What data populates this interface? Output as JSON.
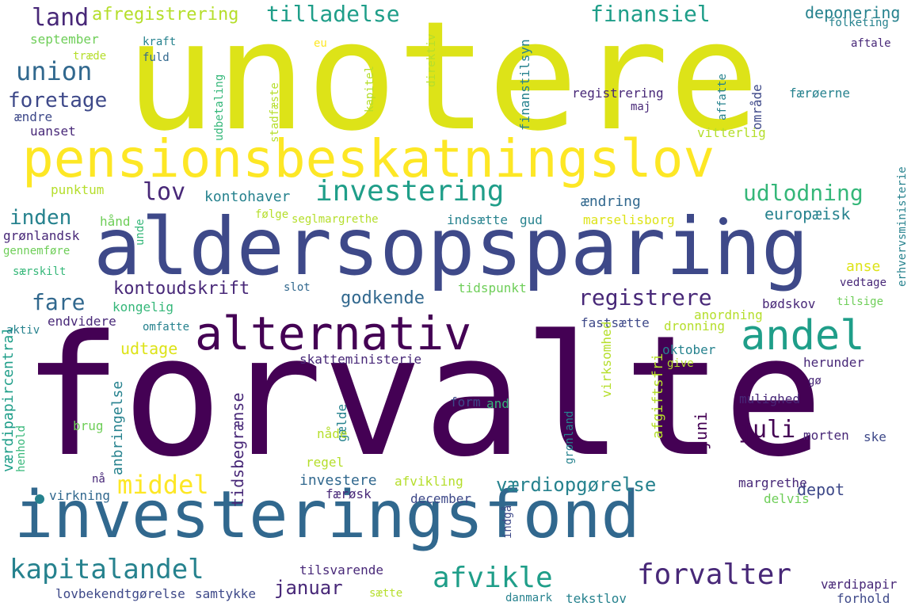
{
  "palette": {
    "c0": "#440154",
    "c1": "#482878",
    "c2": "#3e4989",
    "c3": "#31688e",
    "c4": "#26828e",
    "c5": "#1f9e89",
    "c6": "#35b779",
    "c7": "#6ece58",
    "c8": "#b5de2b",
    "c9": "#dde318",
    "c10": "#fde725"
  },
  "words": [
    {
      "text": "unotere",
      "color": "c9"
    },
    {
      "text": "forvalte",
      "color": "c0"
    },
    {
      "text": "aldersopsparing",
      "color": "c2"
    },
    {
      "text": "investeringsfond",
      "color": "c3"
    },
    {
      "text": "pensionsbeskatningslov",
      "color": "c10"
    },
    {
      "text": "alternativ",
      "color": "c0"
    },
    {
      "text": "andel",
      "color": "c5"
    },
    {
      "text": "investering",
      "color": "c5"
    },
    {
      "text": "kapitalandel",
      "color": "c4"
    },
    {
      "text": "afvikle",
      "color": "c5"
    },
    {
      "text": "forvalter",
      "color": "c1"
    },
    {
      "text": "tilladelse",
      "color": "c5"
    },
    {
      "text": "finansiel",
      "color": "c5"
    },
    {
      "text": "udlodning",
      "color": "c6"
    },
    {
      "text": "registrere",
      "color": "c1"
    },
    {
      "text": "union",
      "color": "c3"
    },
    {
      "text": "land",
      "color": "c1"
    },
    {
      "text": "foretage",
      "color": "c2"
    },
    {
      "text": "lov",
      "color": "c1"
    },
    {
      "text": "inden",
      "color": "c4"
    },
    {
      "text": "fare",
      "color": "c3"
    },
    {
      "text": "middel",
      "color": "c10"
    },
    {
      "text": "juli",
      "color": "c0"
    },
    {
      "text": "januar",
      "color": "c1"
    },
    {
      "text": "værdiopgørelse",
      "color": "c4"
    },
    {
      "text": "kontoudskrift",
      "color": "c1"
    },
    {
      "text": "godkende",
      "color": "c3"
    },
    {
      "text": "europæisk",
      "color": "c4"
    },
    {
      "text": "afregistrering",
      "color": "c8"
    },
    {
      "text": "deponering",
      "color": "c4"
    },
    {
      "text": "kontohaver",
      "color": "c4"
    },
    {
      "text": "ændring",
      "color": "c3"
    },
    {
      "text": "depot",
      "color": "c2"
    },
    {
      "text": "tidsbegrænse",
      "color": "c1"
    },
    {
      "text": "anbringelse",
      "color": "c4"
    },
    {
      "text": "udtage",
      "color": "c9"
    },
    {
      "text": "afgiftsfri",
      "color": "c8"
    },
    {
      "text": "juni",
      "color": "c0"
    },
    {
      "text": "investere",
      "color": "c3"
    },
    {
      "text": "skatteministerie",
      "color": "c1"
    },
    {
      "text": "finanstilsyn",
      "color": "c4"
    },
    {
      "text": "anse",
      "color": "c9"
    },
    {
      "text": "værdipapircentral",
      "color": "c5"
    },
    {
      "text": "erhvervsministerie",
      "color": "c4"
    },
    {
      "text": "september",
      "color": "c7"
    },
    {
      "text": "kraft",
      "color": "c4"
    },
    {
      "text": "fuld",
      "color": "c3"
    },
    {
      "text": "eu",
      "color": "c10"
    },
    {
      "text": "kapitel",
      "color": "c8"
    },
    {
      "text": "direktiv",
      "color": "c8"
    },
    {
      "text": "folketing",
      "color": "c4"
    },
    {
      "text": "aftale",
      "color": "c1"
    },
    {
      "text": "træde",
      "color": "c8"
    },
    {
      "text": "ændre",
      "color": "c2"
    },
    {
      "text": "uanset",
      "color": "c1"
    },
    {
      "text": "udbetaling",
      "color": "c6"
    },
    {
      "text": "stadfæste",
      "color": "c8"
    },
    {
      "text": "registrering",
      "color": "c1"
    },
    {
      "text": "maj",
      "color": "c1"
    },
    {
      "text": "færøerne",
      "color": "c4"
    },
    {
      "text": "affatte",
      "color": "c4"
    },
    {
      "text": "område",
      "color": "c2"
    },
    {
      "text": "vitterlig",
      "color": "c8"
    },
    {
      "text": "punktum",
      "color": "c8"
    },
    {
      "text": "hånd",
      "color": "c7"
    },
    {
      "text": "unde",
      "color": "c6"
    },
    {
      "text": "følge",
      "color": "c8"
    },
    {
      "text": "seglmargrethe",
      "color": "c8"
    },
    {
      "text": "indsætte",
      "color": "c4"
    },
    {
      "text": "gud",
      "color": "c4"
    },
    {
      "text": "marselisborg",
      "color": "c9"
    },
    {
      "text": "grønlandsk",
      "color": "c1"
    },
    {
      "text": "gennemføre",
      "color": "c7"
    },
    {
      "text": "særskilt",
      "color": "c6"
    },
    {
      "text": "slot",
      "color": "c3"
    },
    {
      "text": "tidspunkt",
      "color": "c7"
    },
    {
      "text": "vedtage",
      "color": "c1"
    },
    {
      "text": "kongelig",
      "color": "c6"
    },
    {
      "text": "endvidere",
      "color": "c1"
    },
    {
      "text": "omfatte",
      "color": "c4"
    },
    {
      "text": "aktiv",
      "color": "c4"
    },
    {
      "text": "fastsætte",
      "color": "c2"
    },
    {
      "text": "bødskov",
      "color": "c1"
    },
    {
      "text": "tilsige",
      "color": "c7"
    },
    {
      "text": "anordning",
      "color": "c8"
    },
    {
      "text": "dronning",
      "color": "c8"
    },
    {
      "text": "oktober",
      "color": "c4"
    },
    {
      "text": "give",
      "color": "c8"
    },
    {
      "text": "herunder",
      "color": "c1"
    },
    {
      "text": "gø",
      "color": "c1"
    },
    {
      "text": "mulighed",
      "color": "c1"
    },
    {
      "text": "virksomhed",
      "color": "c8"
    },
    {
      "text": "henhold",
      "color": "c6"
    },
    {
      "text": "brug",
      "color": "c7"
    },
    {
      "text": "gælde",
      "color": "c4"
    },
    {
      "text": "nåde",
      "color": "c8"
    },
    {
      "text": "form",
      "color": "c2"
    },
    {
      "text": "and",
      "color": "c6"
    },
    {
      "text": "grønland",
      "color": "c4"
    },
    {
      "text": "morten",
      "color": "c1"
    },
    {
      "text": "ske",
      "color": "c2"
    },
    {
      "text": "regel",
      "color": "c8"
    },
    {
      "text": "nå",
      "color": "c1"
    },
    {
      "text": "afvikling",
      "color": "c8"
    },
    {
      "text": "virkning",
      "color": "c3"
    },
    {
      "text": "færøsk",
      "color": "c1"
    },
    {
      "text": "december",
      "color": "c2"
    },
    {
      "text": "indgå",
      "color": "c2"
    },
    {
      "text": "margrethe",
      "color": "c1"
    },
    {
      "text": "delvis",
      "color": "c7"
    },
    {
      "text": "tilsvarende",
      "color": "c1"
    },
    {
      "text": "lovbekendtgørelse",
      "color": "c2"
    },
    {
      "text": "samtykke",
      "color": "c2"
    },
    {
      "text": "sætte",
      "color": "c8"
    },
    {
      "text": "danmark",
      "color": "c4"
    },
    {
      "text": "tekstlov",
      "color": "c4"
    },
    {
      "text": "værdipapir",
      "color": "c1"
    },
    {
      "text": "forhold",
      "color": "c2"
    }
  ]
}
